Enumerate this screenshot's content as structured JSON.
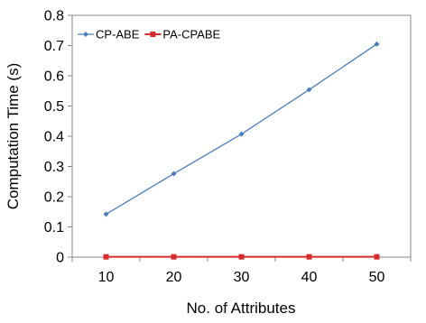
{
  "chart_data": {
    "type": "line",
    "title": "",
    "xlabel": "No. of Attributes",
    "ylabel": "Computation Time (s)",
    "categories": [
      "10",
      "20",
      "30",
      "40",
      "50"
    ],
    "x": [
      10,
      20,
      30,
      40,
      50
    ],
    "ylim": [
      0,
      0.8
    ],
    "y_ticks": [
      "0",
      "0.1",
      "0.2",
      "0.3",
      "0.4",
      "0.5",
      "0.6",
      "0.7",
      "0.8"
    ],
    "y_tick_values": [
      0,
      0.1,
      0.2,
      0.3,
      0.4,
      0.5,
      0.6,
      0.7,
      0.8
    ],
    "grid": false,
    "legend_position": "top-left",
    "series": [
      {
        "name": "CP-ABE",
        "color": "#4A7EBB",
        "marker": "diamond",
        "values": [
          0.142,
          0.276,
          0.407,
          0.554,
          0.705
        ]
      },
      {
        "name": "PA-CPABE",
        "color": "#D62B2B",
        "marker": "square",
        "values": [
          0.001,
          0.001,
          0.001,
          0.001,
          0.001
        ]
      }
    ]
  }
}
